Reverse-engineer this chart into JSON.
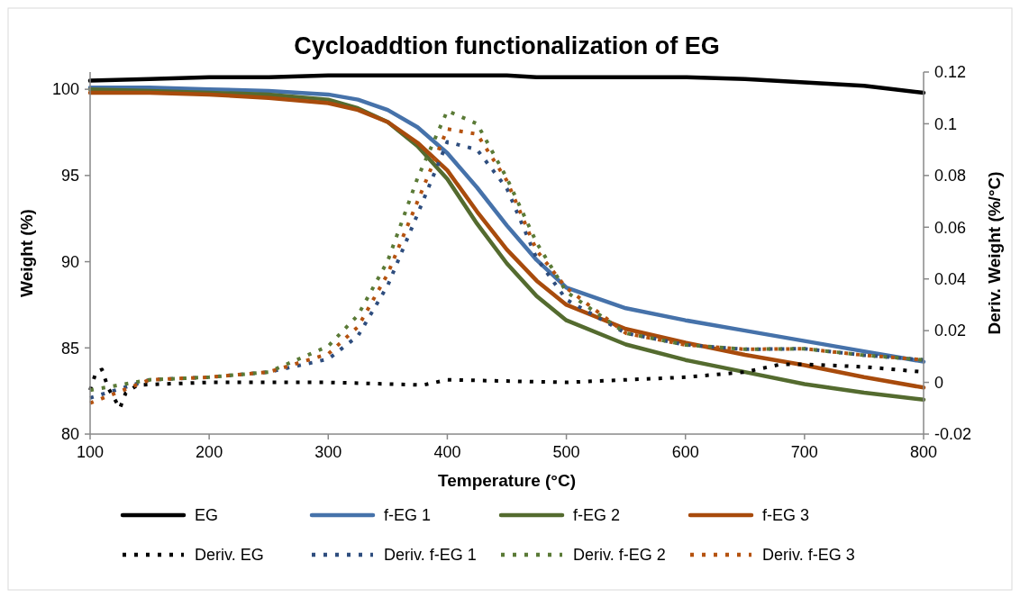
{
  "chart_data": {
    "type": "line",
    "title": "Cycloaddtion functionalization of EG",
    "xlabel": "Temperature (°C)",
    "ylabel": "Weight (%)",
    "y2label": "Deriv. Weight (%/°C)",
    "xlim": [
      100,
      800
    ],
    "xticks": [
      100,
      200,
      300,
      400,
      500,
      600,
      700,
      800
    ],
    "ylim": [
      80,
      101
    ],
    "yticks": [
      80,
      85,
      90,
      95,
      100
    ],
    "y2lim": [
      -0.02,
      0.12
    ],
    "y2ticks": [
      -0.02,
      0,
      0.02,
      0.04,
      0.06,
      0.08,
      0.1,
      0.12
    ],
    "legend": "bottom",
    "grid": false,
    "x": [
      100,
      150,
      200,
      250,
      300,
      325,
      350,
      375,
      400,
      425,
      450,
      475,
      500,
      550,
      600,
      650,
      700,
      750,
      800
    ],
    "series": [
      {
        "name": "EG",
        "color": "#000000",
        "line_style": "solid",
        "values": [
          100.5,
          100.6,
          100.7,
          100.7,
          100.8,
          100.8,
          100.8,
          100.8,
          100.8,
          100.8,
          100.8,
          100.7,
          100.7,
          100.7,
          100.7,
          100.6,
          100.4,
          100.2,
          99.8
        ]
      },
      {
        "name": "f-EG 1",
        "color": "#4672aa",
        "line_style": "solid",
        "values": [
          100.1,
          100.1,
          100.0,
          99.9,
          99.7,
          99.4,
          98.8,
          97.8,
          96.3,
          94.3,
          92.1,
          90.1,
          88.5,
          87.3,
          86.6,
          86.0,
          85.4,
          84.8,
          84.2
        ]
      },
      {
        "name": "f-EG 2",
        "color": "#546b2f",
        "line_style": "solid",
        "values": [
          100.0,
          99.9,
          99.8,
          99.7,
          99.4,
          98.9,
          98.1,
          96.7,
          94.8,
          92.2,
          89.9,
          88.0,
          86.6,
          85.2,
          84.3,
          83.6,
          82.9,
          82.4,
          82.0
        ]
      },
      {
        "name": "f-EG 3",
        "color": "#a84b0c",
        "line_style": "solid",
        "values": [
          99.8,
          99.8,
          99.7,
          99.5,
          99.2,
          98.8,
          98.1,
          96.9,
          95.3,
          92.9,
          90.7,
          88.9,
          87.5,
          86.1,
          85.3,
          84.6,
          84.0,
          83.3,
          82.7
        ]
      },
      {
        "name": "Deriv. EG",
        "color": "#000000",
        "line_style": "dotted",
        "axis": "y2",
        "x": [
          100,
          105,
          110,
          115,
          120,
          125,
          130,
          140,
          200,
          300,
          380,
          400,
          500,
          600,
          650,
          680,
          700,
          750,
          800
        ],
        "values": [
          -0.003,
          0.004,
          0.005,
          -0.002,
          -0.006,
          -0.01,
          -0.004,
          -0.001,
          0,
          0,
          -0.001,
          0.001,
          0,
          0.002,
          0.004,
          0.007,
          0.007,
          0.006,
          0.004
        ]
      },
      {
        "name": "Deriv. f-EG 1",
        "color": "#2e4d7e",
        "line_style": "dotted",
        "axis": "y2",
        "values": [
          -0.006,
          0.001,
          0.002,
          0.004,
          0.009,
          0.018,
          0.0375,
          0.065,
          0.093,
          0.09,
          0.075,
          0.048,
          0.032,
          0.019,
          0.0145,
          0.0128,
          0.013,
          0.0105,
          0.0087
        ]
      },
      {
        "name": "Deriv. f-EG 2",
        "color": "#5a7a36",
        "line_style": "dotted",
        "axis": "y2",
        "values": [
          -0.003,
          0.001,
          0.002,
          0.004,
          0.014,
          0.026,
          0.047,
          0.079,
          0.105,
          0.1,
          0.079,
          0.054,
          0.035,
          0.019,
          0.0145,
          0.0128,
          0.013,
          0.0105,
          0.0087
        ]
      },
      {
        "name": "Deriv. f-EG 3",
        "color": "#b5520f",
        "line_style": "dotted",
        "axis": "y2",
        "values": [
          -0.008,
          0.001,
          0.002,
          0.004,
          0.011,
          0.0215,
          0.042,
          0.07,
          0.098,
          0.096,
          0.078,
          0.051,
          0.0365,
          0.019,
          0.0145,
          0.0128,
          0.013,
          0.0105,
          0.0087
        ]
      }
    ]
  }
}
